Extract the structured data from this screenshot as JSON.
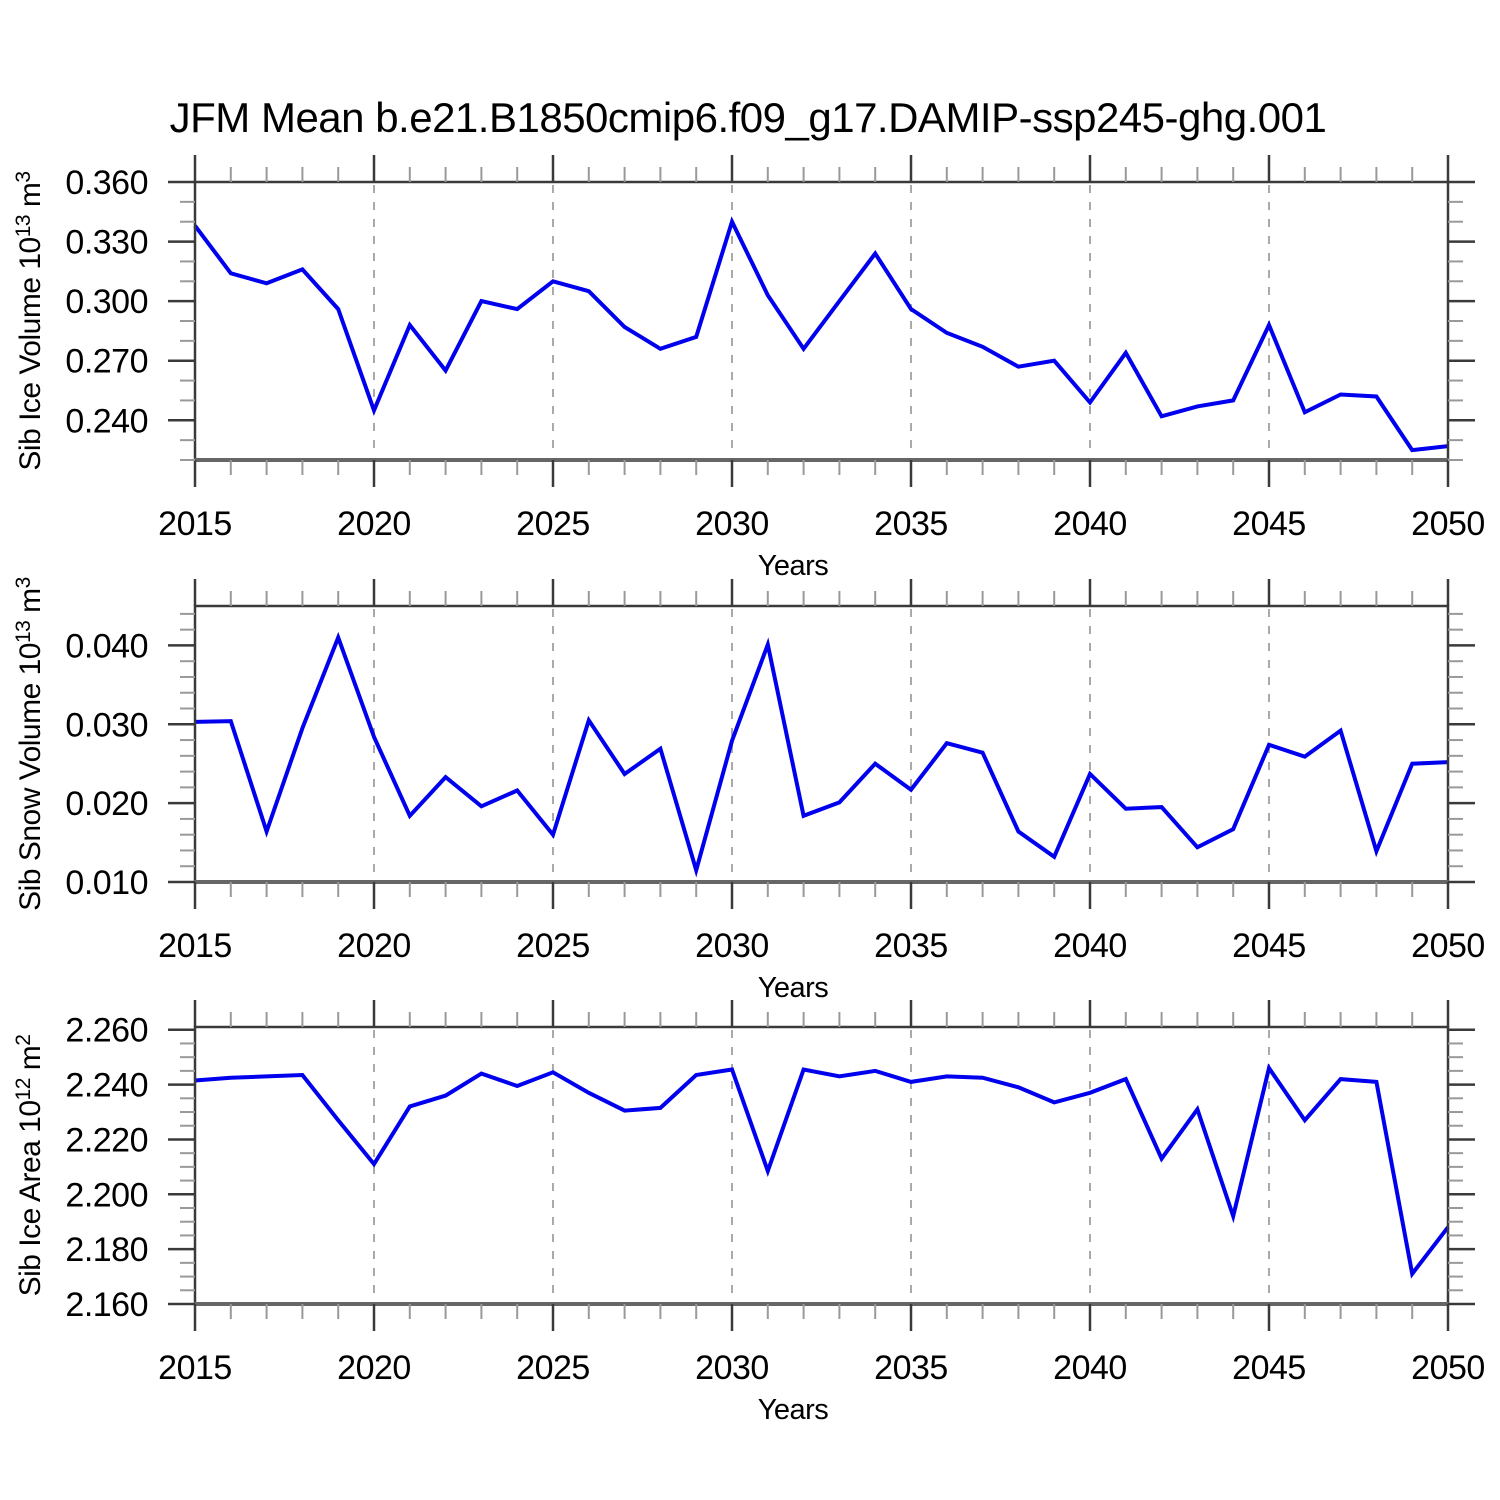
{
  "page": {
    "background": "#ffffff"
  },
  "style": {
    "line_color": "#0000ee",
    "grid_color": "#aaaaaa",
    "frame_color": "#3a3a3a",
    "bottom_axis_color": "#666666",
    "major_tick_color": "#3a3a3a",
    "minor_tick_color": "#999999",
    "text_color": "#000000"
  },
  "chart_data": {
    "type": "line",
    "title": "JFM Mean b.e21.B1850cmip6.f09_g17.DAMIP-ssp245-ghg.001",
    "xlabel": "Years",
    "x": [
      2015,
      2016,
      2017,
      2018,
      2019,
      2020,
      2021,
      2022,
      2023,
      2024,
      2025,
      2026,
      2027,
      2028,
      2029,
      2030,
      2031,
      2032,
      2033,
      2034,
      2035,
      2036,
      2037,
      2038,
      2039,
      2040,
      2041,
      2042,
      2043,
      2044,
      2045,
      2046,
      2047,
      2048,
      2049,
      2050
    ],
    "xlim": [
      2015,
      2050
    ],
    "x_major_ticks": [
      2015,
      2020,
      2025,
      2030,
      2035,
      2040,
      2045,
      2050
    ],
    "x_tick_labels": [
      "2015",
      "2020",
      "2025",
      "2030",
      "2035",
      "2040",
      "2045",
      "2050"
    ],
    "x_minor_step": 1,
    "x_gridlines": [
      2020,
      2025,
      2030,
      2035,
      2040,
      2045
    ],
    "grid": "vertical dashed gridlines at 5-year major ticks, no horizontal grid",
    "legend": null,
    "panels": [
      {
        "ylabel": "Sib Ice Volume 10^13 m^3",
        "ylabel_parts": [
          {
            "t": "Sib Ice Volume 10"
          },
          {
            "t": "13",
            "sup": true
          },
          {
            "t": " m"
          },
          {
            "t": "3",
            "sup": true
          }
        ],
        "ylim": [
          0.22,
          0.36
        ],
        "ytick_values": [
          0.24,
          0.27,
          0.3,
          0.33,
          0.36
        ],
        "ytick_labels": [
          "0.240",
          "0.270",
          "0.300",
          "0.330",
          "0.360"
        ],
        "y_minor_step": 0.01,
        "values": [
          0.338,
          0.314,
          0.309,
          0.316,
          0.296,
          0.245,
          0.288,
          0.265,
          0.3,
          0.296,
          0.31,
          0.305,
          0.287,
          0.276,
          0.282,
          0.34,
          0.303,
          0.276,
          0.3,
          0.324,
          0.296,
          0.284,
          0.277,
          0.267,
          0.27,
          0.249,
          0.274,
          0.242,
          0.247,
          0.25,
          0.288,
          0.244,
          0.253,
          0.252,
          0.225,
          0.227
        ]
      },
      {
        "ylabel": "Sib Snow Volume 10^13 m^3",
        "ylabel_parts": [
          {
            "t": "Sib Snow Volume 10"
          },
          {
            "t": "13",
            "sup": true
          },
          {
            "t": " m"
          },
          {
            "t": "3",
            "sup": true
          }
        ],
        "ylim": [
          0.01,
          0.045
        ],
        "ytick_values": [
          0.01,
          0.02,
          0.03,
          0.04
        ],
        "ytick_labels": [
          "0.010",
          "0.020",
          "0.030",
          "0.040"
        ],
        "y_minor_step": 0.002,
        "values": [
          0.0303,
          0.0304,
          0.0164,
          0.0295,
          0.041,
          0.0284,
          0.0184,
          0.0233,
          0.0196,
          0.0216,
          0.016,
          0.0305,
          0.0237,
          0.0269,
          0.0115,
          0.0279,
          0.0401,
          0.0184,
          0.0201,
          0.025,
          0.0217,
          0.0276,
          0.0264,
          0.0164,
          0.0132,
          0.0237,
          0.0193,
          0.0195,
          0.0144,
          0.0167,
          0.0274,
          0.0259,
          0.0292,
          0.0139,
          0.025,
          0.0252
        ]
      },
      {
        "ylabel": "Sib Ice Area 10^12 m^2",
        "ylabel_parts": [
          {
            "t": "Sib Ice Area 10"
          },
          {
            "t": "12",
            "sup": true
          },
          {
            "t": " m"
          },
          {
            "t": "2",
            "sup": true
          }
        ],
        "ylim": [
          2.16,
          2.261
        ],
        "ytick_values": [
          2.16,
          2.18,
          2.2,
          2.22,
          2.24,
          2.26
        ],
        "ytick_labels": [
          "2.160",
          "2.180",
          "2.200",
          "2.220",
          "2.240",
          "2.260"
        ],
        "y_minor_step": 0.005,
        "values": [
          2.2415,
          2.2425,
          2.243,
          2.2435,
          2.227,
          2.211,
          2.232,
          2.236,
          2.244,
          2.2395,
          2.2445,
          2.237,
          2.2305,
          2.2315,
          2.2435,
          2.2455,
          2.2085,
          2.2455,
          2.243,
          2.245,
          2.241,
          2.243,
          2.2425,
          2.239,
          2.2335,
          2.237,
          2.242,
          2.213,
          2.231,
          2.192,
          2.246,
          2.227,
          2.242,
          2.241,
          2.171,
          2.188
        ]
      }
    ]
  }
}
